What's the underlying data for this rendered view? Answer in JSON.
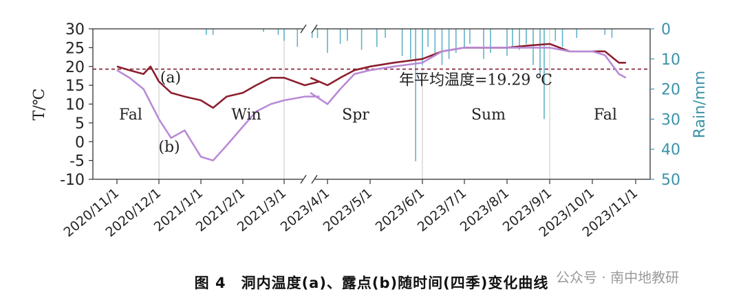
{
  "chart_data": {
    "type": "line",
    "ylabel": "T/℃",
    "y2label": "Rain/mm",
    "ylim": [
      -10,
      30
    ],
    "yticks": [
      30,
      25,
      20,
      15,
      10,
      5,
      0,
      -5,
      -10
    ],
    "y2lim": [
      0,
      50
    ],
    "y2ticks": [
      0,
      10,
      20,
      30,
      40,
      50
    ],
    "y2_inverted": true,
    "xticks": [
      "2020/11/1",
      "2020/12/1",
      "2021/1/1",
      "2021/2/1",
      "2021/3/1",
      "2023/4/1",
      "2023/5/1",
      "2023/6/1",
      "2023/7/1",
      "2023/8/1",
      "2023/9/1",
      "2023/10/1",
      "2023/11/1"
    ],
    "axis_break": "between 2021/3/1 and 2023/4/1",
    "mean_line": {
      "value": 19.29,
      "label": "年平均温度=19.29 ℃",
      "color": "#8b2a3a",
      "style": "dashed"
    },
    "seasons": [
      "Fal",
      "Win",
      "Spr",
      "Sum",
      "Fal"
    ],
    "season_boundaries": [
      "2020/12/1",
      "2021/3/1",
      "2023/6/1",
      "2023/9/1"
    ],
    "series": [
      {
        "name": "(a)",
        "color": "#8b1e2e",
        "x": [
          "2020/11/1",
          "2020/11/10",
          "2020/11/20",
          "2020/11/25",
          "2020/12/1",
          "2020/12/10",
          "2020/12/20",
          "2021/1/1",
          "2021/1/10",
          "2021/1/20",
          "2021/2/1",
          "2021/2/10",
          "2021/2/20",
          "2021/3/1",
          "2021/3/15",
          "2021/3/25",
          "2023/3/20",
          "2023/4/1",
          "2023/4/10",
          "2023/4/20",
          "2023/5/1",
          "2023/5/15",
          "2023/6/1",
          "2023/6/15",
          "2023/7/1",
          "2023/7/15",
          "2023/8/1",
          "2023/8/15",
          "2023/9/1",
          "2023/9/15",
          "2023/10/1",
          "2023/10/10",
          "2023/10/20",
          "2023/10/25"
        ],
        "y": [
          20,
          19,
          18,
          20,
          16,
          13,
          12,
          11,
          9,
          12,
          13,
          15,
          17,
          17,
          15,
          16,
          17,
          15,
          17,
          19,
          20,
          21,
          22,
          24,
          25,
          25,
          25,
          25.5,
          26,
          24,
          24,
          24,
          21,
          21
        ]
      },
      {
        "name": "(b)",
        "color": "#b98ad6",
        "x": [
          "2020/11/1",
          "2020/11/10",
          "2020/11/20",
          "2020/12/1",
          "2020/12/10",
          "2020/12/20",
          "2021/1/1",
          "2021/1/10",
          "2021/1/20",
          "2021/2/1",
          "2021/2/10",
          "2021/2/20",
          "2021/3/1",
          "2021/3/15",
          "2021/3/25",
          "2023/3/20",
          "2023/4/1",
          "2023/4/10",
          "2023/4/20",
          "2023/5/1",
          "2023/5/15",
          "2023/6/1",
          "2023/6/15",
          "2023/7/1",
          "2023/7/15",
          "2023/8/1",
          "2023/8/15",
          "2023/9/1",
          "2023/9/15",
          "2023/10/1",
          "2023/10/10",
          "2023/10/20",
          "2023/10/25"
        ],
        "y": [
          19,
          17,
          14,
          6,
          1,
          3,
          -4,
          -5,
          -1,
          4,
          8,
          10,
          11,
          12,
          12,
          13,
          10,
          14,
          18,
          19,
          20,
          21,
          24,
          25,
          25,
          25,
          25,
          25,
          24,
          24,
          23,
          18,
          17
        ]
      },
      {
        "name": "Rain/mm",
        "color": "#5fb3c8",
        "axis": "y2",
        "type": "bar",
        "x": [
          "2021/1/5",
          "2021/1/10",
          "2021/2/15",
          "2021/2/25",
          "2021/3/1",
          "2021/3/10",
          "2021/3/20",
          "2023/3/25",
          "2023/4/1",
          "2023/4/10",
          "2023/4/15",
          "2023/4/25",
          "2023/5/5",
          "2023/5/10",
          "2023/5/20",
          "2023/5/25",
          "2023/5/28",
          "2023/6/1",
          "2023/6/5",
          "2023/6/10",
          "2023/6/15",
          "2023/6/20",
          "2023/6/25",
          "2023/7/1",
          "2023/7/5",
          "2023/7/15",
          "2023/7/20",
          "2023/8/1",
          "2023/8/5",
          "2023/8/10",
          "2023/8/15",
          "2023/8/20",
          "2023/8/25",
          "2023/8/28",
          "2023/9/5",
          "2023/9/10",
          "2023/9/20",
          "2023/10/10",
          "2023/10/15"
        ],
        "y": [
          2,
          2,
          1,
          2,
          4,
          6,
          3,
          3,
          8,
          5,
          4,
          7,
          6,
          3,
          9,
          10,
          44,
          12,
          6,
          8,
          12,
          10,
          8,
          6,
          5,
          10,
          8,
          9,
          6,
          7,
          5,
          12,
          16,
          30,
          4,
          6,
          3,
          2,
          3
        ]
      }
    ]
  },
  "labels": {
    "series_a": "(a)",
    "series_b": "(b)"
  },
  "caption": "图 4　洞内温度(a)、露点(b)随时间(四季)变化曲线",
  "watermark": "公众号 · 南中地教研"
}
